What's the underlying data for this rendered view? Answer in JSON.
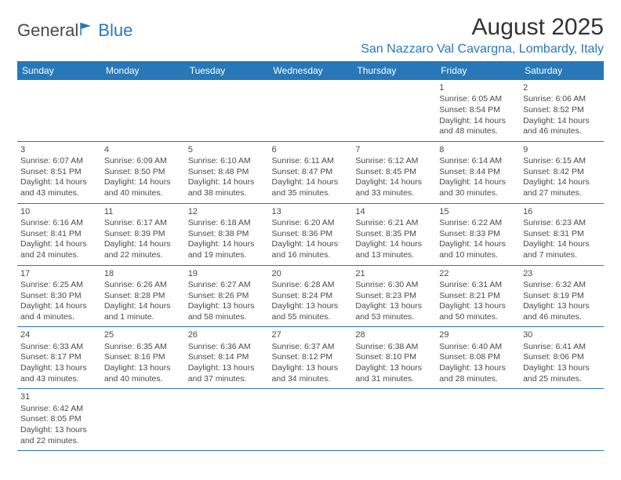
{
  "logo": {
    "text_general": "General",
    "text_blue": "Blue",
    "accent_color": "#2878b8"
  },
  "title": "August 2025",
  "location": "San Nazzaro Val Cavargna, Lombardy, Italy",
  "colors": {
    "header_bg": "#2878b8",
    "header_text": "#ffffff",
    "border": "#2878b8",
    "body_text": "#4a4a4a",
    "background": "#ffffff"
  },
  "typography": {
    "title_fontsize": 30,
    "location_fontsize": 16,
    "weekday_fontsize": 12,
    "cell_fontsize": 10.5
  },
  "weekdays": [
    "Sunday",
    "Monday",
    "Tuesday",
    "Wednesday",
    "Thursday",
    "Friday",
    "Saturday"
  ],
  "weeks": [
    [
      null,
      null,
      null,
      null,
      null,
      {
        "day": "1",
        "sunrise": "Sunrise: 6:05 AM",
        "sunset": "Sunset: 8:54 PM",
        "daylight1": "Daylight: 14 hours",
        "daylight2": "and 48 minutes."
      },
      {
        "day": "2",
        "sunrise": "Sunrise: 6:06 AM",
        "sunset": "Sunset: 8:52 PM",
        "daylight1": "Daylight: 14 hours",
        "daylight2": "and 46 minutes."
      }
    ],
    [
      {
        "day": "3",
        "sunrise": "Sunrise: 6:07 AM",
        "sunset": "Sunset: 8:51 PM",
        "daylight1": "Daylight: 14 hours",
        "daylight2": "and 43 minutes."
      },
      {
        "day": "4",
        "sunrise": "Sunrise: 6:09 AM",
        "sunset": "Sunset: 8:50 PM",
        "daylight1": "Daylight: 14 hours",
        "daylight2": "and 40 minutes."
      },
      {
        "day": "5",
        "sunrise": "Sunrise: 6:10 AM",
        "sunset": "Sunset: 8:48 PM",
        "daylight1": "Daylight: 14 hours",
        "daylight2": "and 38 minutes."
      },
      {
        "day": "6",
        "sunrise": "Sunrise: 6:11 AM",
        "sunset": "Sunset: 8:47 PM",
        "daylight1": "Daylight: 14 hours",
        "daylight2": "and 35 minutes."
      },
      {
        "day": "7",
        "sunrise": "Sunrise: 6:12 AM",
        "sunset": "Sunset: 8:45 PM",
        "daylight1": "Daylight: 14 hours",
        "daylight2": "and 33 minutes."
      },
      {
        "day": "8",
        "sunrise": "Sunrise: 6:14 AM",
        "sunset": "Sunset: 8:44 PM",
        "daylight1": "Daylight: 14 hours",
        "daylight2": "and 30 minutes."
      },
      {
        "day": "9",
        "sunrise": "Sunrise: 6:15 AM",
        "sunset": "Sunset: 8:42 PM",
        "daylight1": "Daylight: 14 hours",
        "daylight2": "and 27 minutes."
      }
    ],
    [
      {
        "day": "10",
        "sunrise": "Sunrise: 6:16 AM",
        "sunset": "Sunset: 8:41 PM",
        "daylight1": "Daylight: 14 hours",
        "daylight2": "and 24 minutes."
      },
      {
        "day": "11",
        "sunrise": "Sunrise: 6:17 AM",
        "sunset": "Sunset: 8:39 PM",
        "daylight1": "Daylight: 14 hours",
        "daylight2": "and 22 minutes."
      },
      {
        "day": "12",
        "sunrise": "Sunrise: 6:18 AM",
        "sunset": "Sunset: 8:38 PM",
        "daylight1": "Daylight: 14 hours",
        "daylight2": "and 19 minutes."
      },
      {
        "day": "13",
        "sunrise": "Sunrise: 6:20 AM",
        "sunset": "Sunset: 8:36 PM",
        "daylight1": "Daylight: 14 hours",
        "daylight2": "and 16 minutes."
      },
      {
        "day": "14",
        "sunrise": "Sunrise: 6:21 AM",
        "sunset": "Sunset: 8:35 PM",
        "daylight1": "Daylight: 14 hours",
        "daylight2": "and 13 minutes."
      },
      {
        "day": "15",
        "sunrise": "Sunrise: 6:22 AM",
        "sunset": "Sunset: 8:33 PM",
        "daylight1": "Daylight: 14 hours",
        "daylight2": "and 10 minutes."
      },
      {
        "day": "16",
        "sunrise": "Sunrise: 6:23 AM",
        "sunset": "Sunset: 8:31 PM",
        "daylight1": "Daylight: 14 hours",
        "daylight2": "and 7 minutes."
      }
    ],
    [
      {
        "day": "17",
        "sunrise": "Sunrise: 6:25 AM",
        "sunset": "Sunset: 8:30 PM",
        "daylight1": "Daylight: 14 hours",
        "daylight2": "and 4 minutes."
      },
      {
        "day": "18",
        "sunrise": "Sunrise: 6:26 AM",
        "sunset": "Sunset: 8:28 PM",
        "daylight1": "Daylight: 14 hours",
        "daylight2": "and 1 minute."
      },
      {
        "day": "19",
        "sunrise": "Sunrise: 6:27 AM",
        "sunset": "Sunset: 8:26 PM",
        "daylight1": "Daylight: 13 hours",
        "daylight2": "and 58 minutes."
      },
      {
        "day": "20",
        "sunrise": "Sunrise: 6:28 AM",
        "sunset": "Sunset: 8:24 PM",
        "daylight1": "Daylight: 13 hours",
        "daylight2": "and 55 minutes."
      },
      {
        "day": "21",
        "sunrise": "Sunrise: 6:30 AM",
        "sunset": "Sunset: 8:23 PM",
        "daylight1": "Daylight: 13 hours",
        "daylight2": "and 53 minutes."
      },
      {
        "day": "22",
        "sunrise": "Sunrise: 6:31 AM",
        "sunset": "Sunset: 8:21 PM",
        "daylight1": "Daylight: 13 hours",
        "daylight2": "and 50 minutes."
      },
      {
        "day": "23",
        "sunrise": "Sunrise: 6:32 AM",
        "sunset": "Sunset: 8:19 PM",
        "daylight1": "Daylight: 13 hours",
        "daylight2": "and 46 minutes."
      }
    ],
    [
      {
        "day": "24",
        "sunrise": "Sunrise: 6:33 AM",
        "sunset": "Sunset: 8:17 PM",
        "daylight1": "Daylight: 13 hours",
        "daylight2": "and 43 minutes."
      },
      {
        "day": "25",
        "sunrise": "Sunrise: 6:35 AM",
        "sunset": "Sunset: 8:16 PM",
        "daylight1": "Daylight: 13 hours",
        "daylight2": "and 40 minutes."
      },
      {
        "day": "26",
        "sunrise": "Sunrise: 6:36 AM",
        "sunset": "Sunset: 8:14 PM",
        "daylight1": "Daylight: 13 hours",
        "daylight2": "and 37 minutes."
      },
      {
        "day": "27",
        "sunrise": "Sunrise: 6:37 AM",
        "sunset": "Sunset: 8:12 PM",
        "daylight1": "Daylight: 13 hours",
        "daylight2": "and 34 minutes."
      },
      {
        "day": "28",
        "sunrise": "Sunrise: 6:38 AM",
        "sunset": "Sunset: 8:10 PM",
        "daylight1": "Daylight: 13 hours",
        "daylight2": "and 31 minutes."
      },
      {
        "day": "29",
        "sunrise": "Sunrise: 6:40 AM",
        "sunset": "Sunset: 8:08 PM",
        "daylight1": "Daylight: 13 hours",
        "daylight2": "and 28 minutes."
      },
      {
        "day": "30",
        "sunrise": "Sunrise: 6:41 AM",
        "sunset": "Sunset: 8:06 PM",
        "daylight1": "Daylight: 13 hours",
        "daylight2": "and 25 minutes."
      }
    ],
    [
      {
        "day": "31",
        "sunrise": "Sunrise: 6:42 AM",
        "sunset": "Sunset: 8:05 PM",
        "daylight1": "Daylight: 13 hours",
        "daylight2": "and 22 minutes."
      },
      null,
      null,
      null,
      null,
      null,
      null
    ]
  ]
}
